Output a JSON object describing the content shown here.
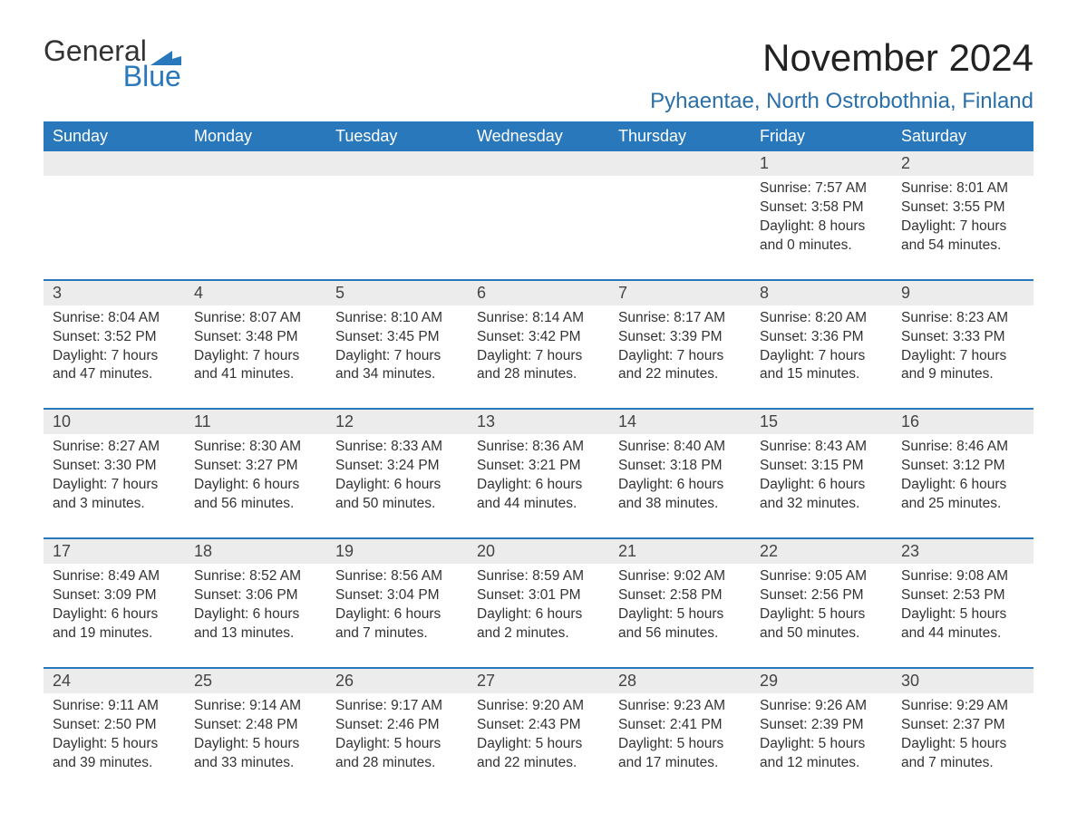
{
  "logo": {
    "general": "General",
    "blue": "Blue",
    "flag_color": "#2a78bc"
  },
  "title": "November 2024",
  "location": "Pyhaentae, North Ostrobothnia, Finland",
  "colors": {
    "header_bg": "#2a78bc",
    "header_text": "#ffffff",
    "week_border": "#2a78bc",
    "daynum_bg": "#ececec",
    "text": "#333333",
    "location_text": "#2a6fa8",
    "page_bg": "#ffffff"
  },
  "typography": {
    "title_fontsize": 42,
    "location_fontsize": 24,
    "weekday_fontsize": 18,
    "daynum_fontsize": 18,
    "body_fontsize": 15.5
  },
  "weekdays": [
    "Sunday",
    "Monday",
    "Tuesday",
    "Wednesday",
    "Thursday",
    "Friday",
    "Saturday"
  ],
  "weeks": [
    [
      {
        "n": "",
        "sunrise": "",
        "sunset": "",
        "dl1": "",
        "dl2": ""
      },
      {
        "n": "",
        "sunrise": "",
        "sunset": "",
        "dl1": "",
        "dl2": ""
      },
      {
        "n": "",
        "sunrise": "",
        "sunset": "",
        "dl1": "",
        "dl2": ""
      },
      {
        "n": "",
        "sunrise": "",
        "sunset": "",
        "dl1": "",
        "dl2": ""
      },
      {
        "n": "",
        "sunrise": "",
        "sunset": "",
        "dl1": "",
        "dl2": ""
      },
      {
        "n": "1",
        "sunrise": "Sunrise: 7:57 AM",
        "sunset": "Sunset: 3:58 PM",
        "dl1": "Daylight: 8 hours",
        "dl2": "and 0 minutes."
      },
      {
        "n": "2",
        "sunrise": "Sunrise: 8:01 AM",
        "sunset": "Sunset: 3:55 PM",
        "dl1": "Daylight: 7 hours",
        "dl2": "and 54 minutes."
      }
    ],
    [
      {
        "n": "3",
        "sunrise": "Sunrise: 8:04 AM",
        "sunset": "Sunset: 3:52 PM",
        "dl1": "Daylight: 7 hours",
        "dl2": "and 47 minutes."
      },
      {
        "n": "4",
        "sunrise": "Sunrise: 8:07 AM",
        "sunset": "Sunset: 3:48 PM",
        "dl1": "Daylight: 7 hours",
        "dl2": "and 41 minutes."
      },
      {
        "n": "5",
        "sunrise": "Sunrise: 8:10 AM",
        "sunset": "Sunset: 3:45 PM",
        "dl1": "Daylight: 7 hours",
        "dl2": "and 34 minutes."
      },
      {
        "n": "6",
        "sunrise": "Sunrise: 8:14 AM",
        "sunset": "Sunset: 3:42 PM",
        "dl1": "Daylight: 7 hours",
        "dl2": "and 28 minutes."
      },
      {
        "n": "7",
        "sunrise": "Sunrise: 8:17 AM",
        "sunset": "Sunset: 3:39 PM",
        "dl1": "Daylight: 7 hours",
        "dl2": "and 22 minutes."
      },
      {
        "n": "8",
        "sunrise": "Sunrise: 8:20 AM",
        "sunset": "Sunset: 3:36 PM",
        "dl1": "Daylight: 7 hours",
        "dl2": "and 15 minutes."
      },
      {
        "n": "9",
        "sunrise": "Sunrise: 8:23 AM",
        "sunset": "Sunset: 3:33 PM",
        "dl1": "Daylight: 7 hours",
        "dl2": "and 9 minutes."
      }
    ],
    [
      {
        "n": "10",
        "sunrise": "Sunrise: 8:27 AM",
        "sunset": "Sunset: 3:30 PM",
        "dl1": "Daylight: 7 hours",
        "dl2": "and 3 minutes."
      },
      {
        "n": "11",
        "sunrise": "Sunrise: 8:30 AM",
        "sunset": "Sunset: 3:27 PM",
        "dl1": "Daylight: 6 hours",
        "dl2": "and 56 minutes."
      },
      {
        "n": "12",
        "sunrise": "Sunrise: 8:33 AM",
        "sunset": "Sunset: 3:24 PM",
        "dl1": "Daylight: 6 hours",
        "dl2": "and 50 minutes."
      },
      {
        "n": "13",
        "sunrise": "Sunrise: 8:36 AM",
        "sunset": "Sunset: 3:21 PM",
        "dl1": "Daylight: 6 hours",
        "dl2": "and 44 minutes."
      },
      {
        "n": "14",
        "sunrise": "Sunrise: 8:40 AM",
        "sunset": "Sunset: 3:18 PM",
        "dl1": "Daylight: 6 hours",
        "dl2": "and 38 minutes."
      },
      {
        "n": "15",
        "sunrise": "Sunrise: 8:43 AM",
        "sunset": "Sunset: 3:15 PM",
        "dl1": "Daylight: 6 hours",
        "dl2": "and 32 minutes."
      },
      {
        "n": "16",
        "sunrise": "Sunrise: 8:46 AM",
        "sunset": "Sunset: 3:12 PM",
        "dl1": "Daylight: 6 hours",
        "dl2": "and 25 minutes."
      }
    ],
    [
      {
        "n": "17",
        "sunrise": "Sunrise: 8:49 AM",
        "sunset": "Sunset: 3:09 PM",
        "dl1": "Daylight: 6 hours",
        "dl2": "and 19 minutes."
      },
      {
        "n": "18",
        "sunrise": "Sunrise: 8:52 AM",
        "sunset": "Sunset: 3:06 PM",
        "dl1": "Daylight: 6 hours",
        "dl2": "and 13 minutes."
      },
      {
        "n": "19",
        "sunrise": "Sunrise: 8:56 AM",
        "sunset": "Sunset: 3:04 PM",
        "dl1": "Daylight: 6 hours",
        "dl2": "and 7 minutes."
      },
      {
        "n": "20",
        "sunrise": "Sunrise: 8:59 AM",
        "sunset": "Sunset: 3:01 PM",
        "dl1": "Daylight: 6 hours",
        "dl2": "and 2 minutes."
      },
      {
        "n": "21",
        "sunrise": "Sunrise: 9:02 AM",
        "sunset": "Sunset: 2:58 PM",
        "dl1": "Daylight: 5 hours",
        "dl2": "and 56 minutes."
      },
      {
        "n": "22",
        "sunrise": "Sunrise: 9:05 AM",
        "sunset": "Sunset: 2:56 PM",
        "dl1": "Daylight: 5 hours",
        "dl2": "and 50 minutes."
      },
      {
        "n": "23",
        "sunrise": "Sunrise: 9:08 AM",
        "sunset": "Sunset: 2:53 PM",
        "dl1": "Daylight: 5 hours",
        "dl2": "and 44 minutes."
      }
    ],
    [
      {
        "n": "24",
        "sunrise": "Sunrise: 9:11 AM",
        "sunset": "Sunset: 2:50 PM",
        "dl1": "Daylight: 5 hours",
        "dl2": "and 39 minutes."
      },
      {
        "n": "25",
        "sunrise": "Sunrise: 9:14 AM",
        "sunset": "Sunset: 2:48 PM",
        "dl1": "Daylight: 5 hours",
        "dl2": "and 33 minutes."
      },
      {
        "n": "26",
        "sunrise": "Sunrise: 9:17 AM",
        "sunset": "Sunset: 2:46 PM",
        "dl1": "Daylight: 5 hours",
        "dl2": "and 28 minutes."
      },
      {
        "n": "27",
        "sunrise": "Sunrise: 9:20 AM",
        "sunset": "Sunset: 2:43 PM",
        "dl1": "Daylight: 5 hours",
        "dl2": "and 22 minutes."
      },
      {
        "n": "28",
        "sunrise": "Sunrise: 9:23 AM",
        "sunset": "Sunset: 2:41 PM",
        "dl1": "Daylight: 5 hours",
        "dl2": "and 17 minutes."
      },
      {
        "n": "29",
        "sunrise": "Sunrise: 9:26 AM",
        "sunset": "Sunset: 2:39 PM",
        "dl1": "Daylight: 5 hours",
        "dl2": "and 12 minutes."
      },
      {
        "n": "30",
        "sunrise": "Sunrise: 9:29 AM",
        "sunset": "Sunset: 2:37 PM",
        "dl1": "Daylight: 5 hours",
        "dl2": "and 7 minutes."
      }
    ]
  ]
}
